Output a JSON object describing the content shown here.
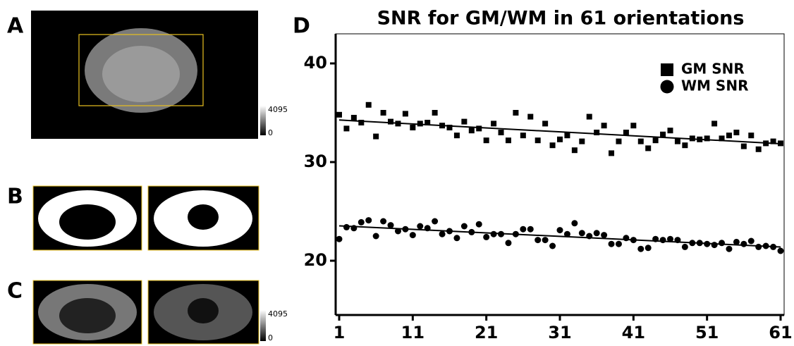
{
  "panel_labels": {
    "a": "A",
    "b": "B",
    "c": "C",
    "d": "D"
  },
  "colorbars": [
    {
      "max": 4095,
      "min": 0
    },
    {
      "max": 4095,
      "min": 0
    }
  ],
  "chart_data": {
    "type": "scatter",
    "title": "SNR for GM/WM in 61 orientations",
    "x": [
      1,
      2,
      3,
      4,
      5,
      6,
      7,
      8,
      9,
      10,
      11,
      12,
      13,
      14,
      15,
      16,
      17,
      18,
      19,
      20,
      21,
      22,
      23,
      24,
      25,
      26,
      27,
      28,
      29,
      30,
      31,
      32,
      33,
      34,
      35,
      36,
      37,
      38,
      39,
      40,
      41,
      42,
      43,
      44,
      45,
      46,
      47,
      48,
      49,
      50,
      51,
      52,
      53,
      54,
      55,
      56,
      57,
      58,
      59,
      60,
      61
    ],
    "series": [
      {
        "name": "GM SNR",
        "color": "#000000",
        "marker": "square",
        "values": [
          34.8,
          33.4,
          34.5,
          34.0,
          35.8,
          32.6,
          35.0,
          34.1,
          33.9,
          34.9,
          33.5,
          33.9,
          34.0,
          35.0,
          33.7,
          33.5,
          32.7,
          34.1,
          33.2,
          33.4,
          32.2,
          33.9,
          33.0,
          32.2,
          35.0,
          32.7,
          34.6,
          32.2,
          33.9,
          31.7,
          32.3,
          32.7,
          31.2,
          32.1,
          34.6,
          33.0,
          33.7,
          30.9,
          32.1,
          33.0,
          33.7,
          32.1,
          31.4,
          32.2,
          32.8,
          33.2,
          32.1,
          31.7,
          32.4,
          32.3,
          32.4,
          33.9,
          32.4,
          32.7,
          33.0,
          31.6,
          32.7,
          31.3,
          31.9,
          32.1,
          31.9
        ]
      },
      {
        "name": "WM SNR",
        "color": "#000000",
        "marker": "circle",
        "values": [
          22.2,
          23.4,
          23.3,
          23.9,
          24.1,
          22.5,
          24.0,
          23.6,
          23.0,
          23.2,
          22.6,
          23.5,
          23.3,
          24.0,
          22.7,
          23.0,
          22.3,
          23.5,
          22.9,
          23.7,
          22.4,
          22.7,
          22.7,
          21.8,
          22.7,
          23.2,
          23.2,
          22.1,
          22.1,
          21.5,
          23.1,
          22.7,
          23.8,
          22.8,
          22.5,
          22.8,
          22.6,
          21.7,
          21.7,
          22.3,
          22.1,
          21.2,
          21.3,
          22.2,
          22.1,
          22.2,
          22.1,
          21.4,
          21.8,
          21.8,
          21.7,
          21.6,
          21.8,
          21.2,
          21.9,
          21.7,
          22.0,
          21.4,
          21.5,
          21.4,
          21.0
        ]
      }
    ],
    "xlim": [
      1,
      61
    ],
    "xticks": [
      1,
      11,
      21,
      31,
      41,
      51,
      61
    ],
    "ylim": [
      14.5,
      43
    ],
    "yticks": [
      20,
      30,
      40
    ],
    "trend_lines": true,
    "legend": "top-right"
  }
}
